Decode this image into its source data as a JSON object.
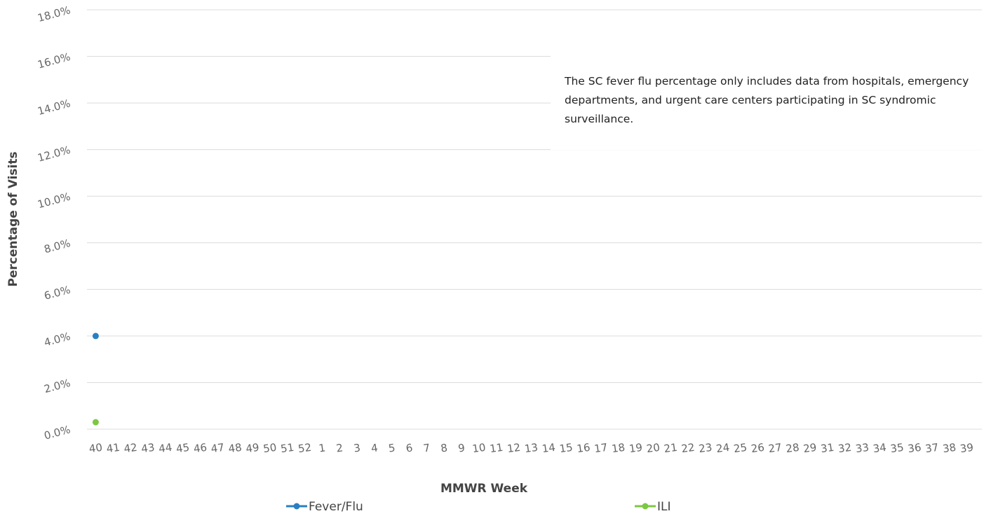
{
  "chart_data": {
    "type": "line",
    "annotation": "The SC fever flu percentage only includes data from hospitals, emergency departments, and urgent care centers participating in SC syndromic surveillance.",
    "xlabel": "MMWR Week",
    "ylabel": "Percentage of Visits",
    "categories": [
      "40",
      "41",
      "42",
      "43",
      "44",
      "45",
      "46",
      "47",
      "48",
      "49",
      "50",
      "51",
      "52",
      "1",
      "2",
      "3",
      "4",
      "5",
      "6",
      "7",
      "8",
      "9",
      "10",
      "11",
      "12",
      "13",
      "14",
      "15",
      "16",
      "17",
      "18",
      "19",
      "20",
      "21",
      "22",
      "23",
      "24",
      "25",
      "26",
      "27",
      "28",
      "29",
      "31",
      "32",
      "33",
      "34",
      "35",
      "36",
      "37",
      "38",
      "39"
    ],
    "series": [
      {
        "name": "Fever/Flu",
        "color": "#2a7fc1",
        "values": [
          4.0,
          null,
          null,
          null,
          null,
          null,
          null,
          null,
          null,
          null,
          null,
          null,
          null,
          null,
          null,
          null,
          null,
          null,
          null,
          null,
          null,
          null,
          null,
          null,
          null,
          null,
          null,
          null,
          null,
          null,
          null,
          null,
          null,
          null,
          null,
          null,
          null,
          null,
          null,
          null,
          null,
          null,
          null,
          null,
          null,
          null,
          null,
          null,
          null,
          null,
          null
        ]
      },
      {
        "name": "ILI",
        "color": "#7dc742",
        "values": [
          0.3,
          null,
          null,
          null,
          null,
          null,
          null,
          null,
          null,
          null,
          null,
          null,
          null,
          null,
          null,
          null,
          null,
          null,
          null,
          null,
          null,
          null,
          null,
          null,
          null,
          null,
          null,
          null,
          null,
          null,
          null,
          null,
          null,
          null,
          null,
          null,
          null,
          null,
          null,
          null,
          null,
          null,
          null,
          null,
          null,
          null,
          null,
          null,
          null,
          null,
          null
        ]
      }
    ],
    "ylim": [
      0,
      18
    ],
    "yticks": [
      {
        "value": 0,
        "label": "0.0%"
      },
      {
        "value": 2,
        "label": "2.0%"
      },
      {
        "value": 4,
        "label": "4.0%"
      },
      {
        "value": 6,
        "label": "6.0%"
      },
      {
        "value": 8,
        "label": "8.0%"
      },
      {
        "value": 10,
        "label": "10.0%"
      },
      {
        "value": 12,
        "label": "12.0%"
      },
      {
        "value": 14,
        "label": "14.0%"
      },
      {
        "value": 16,
        "label": "16.0%"
      },
      {
        "value": 18,
        "label": "18.0%"
      }
    ],
    "grid": true
  }
}
